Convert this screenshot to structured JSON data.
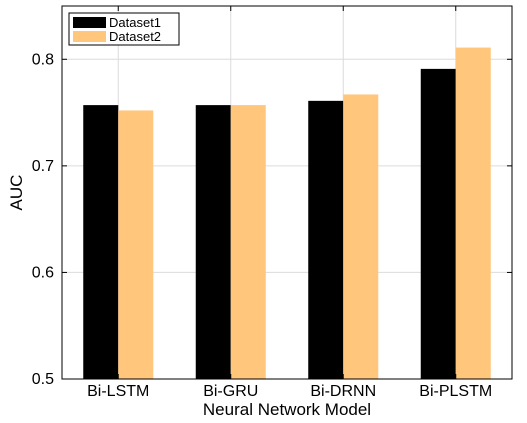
{
  "chart_data": {
    "type": "bar",
    "title": "",
    "xlabel": "Neural Network Model",
    "ylabel": "AUC",
    "categories": [
      "Bi-LSTM",
      "Bi-GRU",
      "Bi-DRNN",
      "Bi-PLSTM"
    ],
    "series": [
      {
        "name": "Dataset1",
        "color": "#000000",
        "values": [
          0.757,
          0.757,
          0.761,
          0.791
        ]
      },
      {
        "name": "Dataset2",
        "color": "#ffc67c",
        "values": [
          0.752,
          0.757,
          0.767,
          0.811
        ]
      }
    ],
    "ylim": [
      0.5,
      0.85
    ],
    "yticks": [
      0.5,
      0.6,
      0.7,
      0.8
    ],
    "ytick_labels": [
      "0.5",
      "0.6",
      "0.7",
      "0.8"
    ],
    "grid": true,
    "legend_position": "top-left"
  }
}
